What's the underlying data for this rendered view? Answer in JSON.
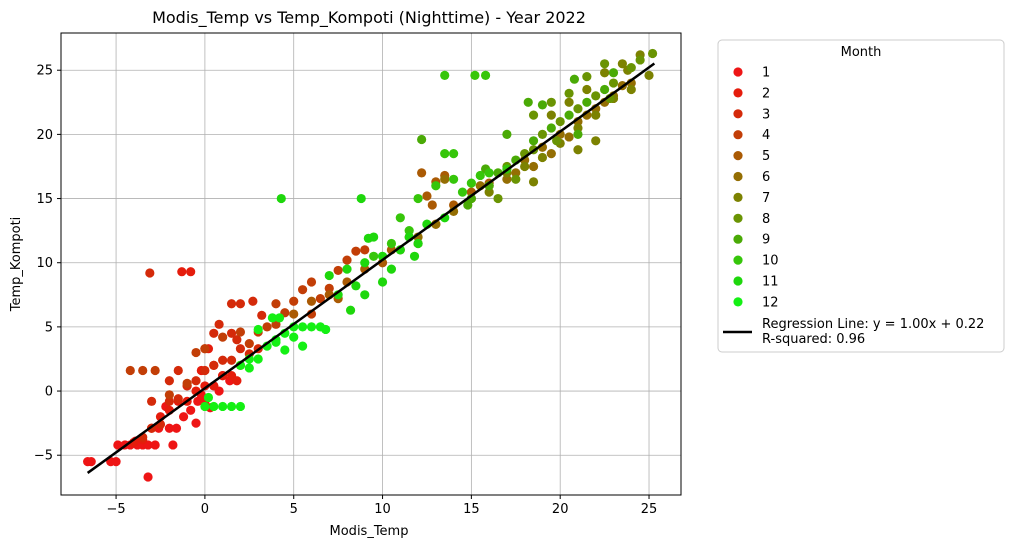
{
  "chart_data": {
    "type": "scatter",
    "title": "Modis_Temp vs Temp_Kompoti (Nighttime) - Year 2022",
    "xlabel": "Modis_Temp",
    "ylabel": "Temp_Kompoti",
    "xlim": [
      -8.1,
      26.8
    ],
    "ylim": [
      -8.1,
      27.9
    ],
    "xticks": [
      -5,
      0,
      5,
      10,
      15,
      20,
      25
    ],
    "yticks": [
      -5,
      0,
      5,
      10,
      15,
      20,
      25
    ],
    "grid": true,
    "legend": {
      "title": "Month",
      "placement": "outside-right",
      "regression_label": "Regression Line: y = 1.00x + 0.22\nR-squared: 0.96"
    },
    "regression": {
      "slope": 1.0,
      "intercept": 0.22,
      "r_squared": 0.96,
      "x_range": [
        -6.6,
        25.3
      ]
    },
    "series": [
      {
        "name": "1",
        "color": "#ee1515",
        "points": [
          [
            -6.6,
            -5.5
          ],
          [
            -6.4,
            -5.5
          ],
          [
            -5.3,
            -5.5
          ],
          [
            -5.0,
            -5.5
          ],
          [
            -4.9,
            -4.2
          ],
          [
            -4.5,
            -4.2
          ],
          [
            -4.2,
            -4.2
          ],
          [
            -3.8,
            -4.2
          ],
          [
            -3.5,
            -4.2
          ],
          [
            -3.2,
            -4.2
          ],
          [
            -2.8,
            -4.2
          ],
          [
            -3.2,
            -6.7
          ],
          [
            -3.9,
            -3.9
          ],
          [
            -2.6,
            -2.9
          ],
          [
            -2.0,
            -2.9
          ],
          [
            -1.6,
            -2.9
          ],
          [
            -1.2,
            -2.0
          ],
          [
            -0.8,
            -1.5
          ],
          [
            -0.4,
            -0.8
          ],
          [
            0.0,
            -0.8
          ],
          [
            0.5,
            0.4
          ],
          [
            0.8,
            0.0
          ],
          [
            -0.2,
            -0.3
          ],
          [
            1.0,
            1.2
          ],
          [
            1.4,
            0.8
          ],
          [
            -0.5,
            -2.5
          ],
          [
            0.3,
            -1.3
          ],
          [
            -1.8,
            -4.2
          ],
          [
            -2.2,
            -1.2
          ]
        ]
      },
      {
        "name": "2",
        "color": "#e51c0c",
        "points": [
          [
            -4.0,
            -4.0
          ],
          [
            -3.5,
            -3.8
          ],
          [
            -3.0,
            -2.9
          ],
          [
            -2.5,
            -2.0
          ],
          [
            -2.0,
            -1.5
          ],
          [
            -1.5,
            -0.8
          ],
          [
            -1.0,
            -0.8
          ],
          [
            -0.5,
            0.0
          ],
          [
            0.0,
            0.4
          ],
          [
            0.5,
            0.4
          ],
          [
            1.0,
            1.2
          ],
          [
            1.5,
            1.2
          ],
          [
            2.0,
            2.0
          ],
          [
            -1.3,
            9.3
          ],
          [
            -0.8,
            9.3
          ],
          [
            0.5,
            2.0
          ],
          [
            0.2,
            3.3
          ],
          [
            -0.2,
            1.6
          ],
          [
            1.8,
            0.8
          ],
          [
            -1.0,
            0.4
          ]
        ]
      },
      {
        "name": "3",
        "color": "#d42a0a",
        "points": [
          [
            -3.1,
            9.2
          ],
          [
            -3.5,
            -3.6
          ],
          [
            -3.0,
            -2.9
          ],
          [
            -2.5,
            -2.6
          ],
          [
            -2.0,
            -0.8
          ],
          [
            -1.5,
            -0.6
          ],
          [
            -1.0,
            0.4
          ],
          [
            -0.5,
            0.8
          ],
          [
            0.0,
            1.6
          ],
          [
            0.5,
            2.0
          ],
          [
            1.0,
            2.4
          ],
          [
            1.5,
            2.4
          ],
          [
            2.0,
            3.3
          ],
          [
            2.5,
            2.9
          ],
          [
            3.0,
            3.3
          ],
          [
            0.0,
            3.3
          ],
          [
            0.5,
            4.5
          ],
          [
            1.5,
            4.5
          ],
          [
            2.0,
            6.8
          ],
          [
            1.5,
            6.8
          ],
          [
            2.7,
            7.0
          ],
          [
            3.2,
            5.9
          ],
          [
            -2.0,
            0.8
          ],
          [
            -3.0,
            -0.8
          ],
          [
            -1.5,
            1.6
          ],
          [
            0.8,
            5.2
          ],
          [
            1.8,
            4.0
          ]
        ]
      },
      {
        "name": "4",
        "color": "#c23e07",
        "points": [
          [
            -4.2,
            1.6
          ],
          [
            -3.5,
            1.6
          ],
          [
            -2.8,
            1.6
          ],
          [
            -2.0,
            -0.3
          ],
          [
            -1.0,
            0.6
          ],
          [
            0.0,
            3.3
          ],
          [
            1.0,
            4.2
          ],
          [
            2.0,
            4.6
          ],
          [
            3.0,
            4.6
          ],
          [
            4.0,
            5.2
          ],
          [
            4.5,
            6.1
          ],
          [
            5.0,
            7.0
          ],
          [
            5.5,
            7.9
          ],
          [
            6.0,
            8.5
          ],
          [
            6.5,
            7.2
          ],
          [
            7.0,
            8.0
          ],
          [
            7.5,
            9.4
          ],
          [
            8.0,
            10.2
          ],
          [
            8.5,
            10.9
          ],
          [
            9.0,
            11.0
          ],
          [
            4.0,
            6.8
          ],
          [
            6.0,
            6.0
          ],
          [
            2.5,
            3.7
          ],
          [
            3.5,
            5.0
          ],
          [
            -0.5,
            3.0
          ]
        ]
      },
      {
        "name": "5",
        "color": "#aa5a04",
        "points": [
          [
            5.0,
            6.0
          ],
          [
            6.0,
            7.0
          ],
          [
            7.0,
            7.5
          ],
          [
            8.0,
            8.5
          ],
          [
            9.0,
            9.5
          ],
          [
            10.0,
            10.0
          ],
          [
            11.0,
            11.0
          ],
          [
            12.0,
            11.5
          ],
          [
            12.5,
            15.2
          ],
          [
            13.0,
            16.3
          ],
          [
            13.5,
            16.8
          ],
          [
            12.8,
            14.5
          ],
          [
            11.5,
            12.0
          ],
          [
            13.0,
            13.0
          ],
          [
            10.5,
            11.0
          ],
          [
            14.0,
            14.5
          ],
          [
            15.0,
            15.5
          ],
          [
            16.0,
            16.2
          ],
          [
            12.2,
            17.0
          ],
          [
            7.5,
            7.2
          ]
        ]
      },
      {
        "name": "6",
        "color": "#946e03",
        "points": [
          [
            12.0,
            12.0
          ],
          [
            13.0,
            13.0
          ],
          [
            14.0,
            14.0
          ],
          [
            15.0,
            15.0
          ],
          [
            16.0,
            16.0
          ],
          [
            17.0,
            16.5
          ],
          [
            18.0,
            18.0
          ],
          [
            19.0,
            19.0
          ],
          [
            20.0,
            20.0
          ],
          [
            21.0,
            21.0
          ],
          [
            22.0,
            22.0
          ],
          [
            23.0,
            23.0
          ],
          [
            24.0,
            24.0
          ],
          [
            17.5,
            17.0
          ],
          [
            18.5,
            17.5
          ],
          [
            19.5,
            18.5
          ],
          [
            20.5,
            19.8
          ],
          [
            21.5,
            21.5
          ],
          [
            22.5,
            22.5
          ],
          [
            23.5,
            23.8
          ],
          [
            13.5,
            16.5
          ],
          [
            15.5,
            16.0
          ]
        ]
      },
      {
        "name": "7",
        "color": "#7c8201",
        "points": [
          [
            16.0,
            15.5
          ],
          [
            17.0,
            17.0
          ],
          [
            18.0,
            17.5
          ],
          [
            19.0,
            18.2
          ],
          [
            20.0,
            19.3
          ],
          [
            21.0,
            20.5
          ],
          [
            22.0,
            21.5
          ],
          [
            23.0,
            22.8
          ],
          [
            24.0,
            23.5
          ],
          [
            25.0,
            24.6
          ],
          [
            24.5,
            26.2
          ],
          [
            23.5,
            25.5
          ],
          [
            22.5,
            24.8
          ],
          [
            21.5,
            23.5
          ],
          [
            20.5,
            22.5
          ],
          [
            19.5,
            21.5
          ],
          [
            21.0,
            18.8
          ],
          [
            22.0,
            19.5
          ],
          [
            18.5,
            16.3
          ],
          [
            23.8,
            25.0
          ]
        ]
      },
      {
        "name": "8",
        "color": "#6a9403",
        "points": [
          [
            17.0,
            17.5
          ],
          [
            18.0,
            18.5
          ],
          [
            19.0,
            20.0
          ],
          [
            20.0,
            21.0
          ],
          [
            21.0,
            22.0
          ],
          [
            22.0,
            23.0
          ],
          [
            23.0,
            24.0
          ],
          [
            24.0,
            25.2
          ],
          [
            25.2,
            26.3
          ],
          [
            24.5,
            25.8
          ],
          [
            19.5,
            22.5
          ],
          [
            18.5,
            21.5
          ],
          [
            20.5,
            23.2
          ],
          [
            21.5,
            24.5
          ],
          [
            22.5,
            25.5
          ],
          [
            17.5,
            16.5
          ],
          [
            16.5,
            15.0
          ],
          [
            18.5,
            18.8
          ],
          [
            19.8,
            19.5
          ],
          [
            22.8,
            22.8
          ]
        ]
      },
      {
        "name": "9",
        "color": "#4aaa06",
        "points": [
          [
            12.2,
            19.6
          ],
          [
            16.5,
            17.0
          ],
          [
            17.5,
            18.0
          ],
          [
            18.5,
            19.5
          ],
          [
            19.5,
            20.5
          ],
          [
            20.5,
            21.5
          ],
          [
            21.5,
            22.5
          ],
          [
            22.5,
            23.5
          ],
          [
            16.0,
            16.0
          ],
          [
            15.0,
            15.0
          ],
          [
            19.0,
            22.3
          ],
          [
            20.8,
            24.3
          ],
          [
            18.2,
            22.5
          ],
          [
            17.0,
            20.0
          ],
          [
            23.0,
            24.8
          ],
          [
            21.0,
            20.0
          ],
          [
            15.8,
            17.3
          ],
          [
            14.8,
            14.5
          ]
        ]
      },
      {
        "name": "10",
        "color": "#36c60a",
        "points": [
          [
            13.5,
            24.6
          ],
          [
            15.2,
            24.6
          ],
          [
            15.8,
            24.6
          ],
          [
            13.5,
            18.5
          ],
          [
            14.0,
            18.5
          ],
          [
            12.0,
            15.0
          ],
          [
            13.0,
            16.0
          ],
          [
            14.0,
            16.5
          ],
          [
            15.0,
            16.2
          ],
          [
            16.0,
            17.0
          ],
          [
            17.0,
            17.3
          ],
          [
            12.5,
            13.0
          ],
          [
            11.5,
            12.5
          ],
          [
            10.5,
            11.5
          ],
          [
            9.5,
            10.5
          ],
          [
            15.5,
            16.8
          ],
          [
            14.5,
            15.5
          ],
          [
            11.0,
            13.5
          ]
        ]
      },
      {
        "name": "11",
        "color": "#1ed70c",
        "points": [
          [
            4.3,
            15.0
          ],
          [
            8.8,
            15.0
          ],
          [
            7.0,
            9.0
          ],
          [
            8.0,
            9.5
          ],
          [
            9.0,
            10.0
          ],
          [
            10.0,
            10.5
          ],
          [
            11.0,
            11.0
          ],
          [
            12.0,
            11.5
          ],
          [
            9.2,
            11.9
          ],
          [
            8.5,
            8.2
          ],
          [
            10.5,
            9.5
          ],
          [
            11.5,
            12.0
          ],
          [
            12.5,
            13.0
          ],
          [
            13.5,
            13.5
          ],
          [
            7.5,
            7.5
          ],
          [
            8.2,
            6.3
          ],
          [
            9.0,
            7.5
          ],
          [
            10.0,
            8.5
          ],
          [
            11.8,
            10.5
          ],
          [
            9.5,
            12.0
          ]
        ]
      },
      {
        "name": "12",
        "color": "#14f014",
        "points": [
          [
            0.0,
            -1.2
          ],
          [
            0.5,
            -1.2
          ],
          [
            1.0,
            -1.2
          ],
          [
            1.5,
            -1.2
          ],
          [
            2.0,
            -1.2
          ],
          [
            0.2,
            -0.5
          ],
          [
            2.0,
            2.0
          ],
          [
            2.5,
            2.5
          ],
          [
            3.0,
            2.5
          ],
          [
            3.5,
            3.5
          ],
          [
            4.0,
            4.0
          ],
          [
            4.5,
            4.5
          ],
          [
            5.0,
            5.0
          ],
          [
            5.5,
            5.0
          ],
          [
            6.0,
            5.0
          ],
          [
            6.5,
            5.0
          ],
          [
            3.8,
            5.7
          ],
          [
            4.2,
            5.7
          ],
          [
            3.0,
            4.8
          ],
          [
            2.5,
            1.8
          ],
          [
            4.5,
            3.2
          ],
          [
            5.5,
            3.5
          ],
          [
            6.8,
            4.8
          ],
          [
            5.0,
            4.2
          ],
          [
            4.0,
            3.8
          ]
        ]
      }
    ]
  }
}
